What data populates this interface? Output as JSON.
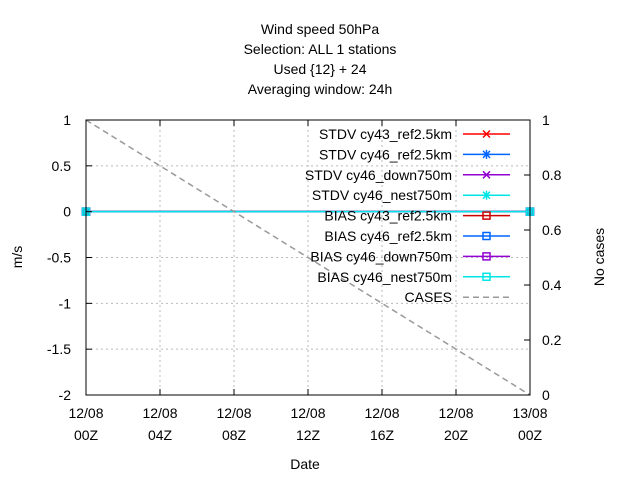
{
  "chart_data": {
    "type": "line",
    "title_lines": [
      "Wind speed 50hPa",
      "Selection: ALL       1 stations",
      "Used {12} + 24",
      "Averaging window: 24h"
    ],
    "xlabel": "Date",
    "ylabel": "m/s",
    "y2label": "No cases",
    "x_ticks": [
      [
        "12/08",
        "00Z"
      ],
      [
        "12/08",
        "04Z"
      ],
      [
        "12/08",
        "08Z"
      ],
      [
        "12/08",
        "12Z"
      ],
      [
        "12/08",
        "16Z"
      ],
      [
        "12/08",
        "20Z"
      ],
      [
        "13/08",
        "00Z"
      ]
    ],
    "x_range_hours": [
      0,
      24
    ],
    "y_ticks": [
      "1",
      "0.5",
      "0",
      "-0.5",
      "-1",
      "-1.5",
      "-2"
    ],
    "ylim": [
      -2,
      1
    ],
    "y2_ticks": [
      "1",
      "0.8",
      "0.6",
      "0.4",
      "0.2",
      "0"
    ],
    "y2lim": [
      0,
      1
    ],
    "grid": true,
    "legend_position": "top-right",
    "series": [
      {
        "name": "STDV cy43_ref2.5km",
        "color": "#ff0000",
        "marker": "x",
        "axis": "y1",
        "x": [
          0,
          24
        ],
        "y": [
          0,
          0
        ]
      },
      {
        "name": "STDV cy46_ref2.5km",
        "color": "#0066ff",
        "marker": "star",
        "axis": "y1",
        "x": [
          0,
          24
        ],
        "y": [
          0,
          0
        ]
      },
      {
        "name": "STDV cy46_down750m",
        "color": "#9400d3",
        "marker": "x",
        "axis": "y1",
        "x": [
          0,
          24
        ],
        "y": [
          0,
          0
        ]
      },
      {
        "name": "STDV cy46_nest750m",
        "color": "#00e5e5",
        "marker": "star",
        "axis": "y1",
        "x": [
          0,
          24
        ],
        "y": [
          0,
          0
        ]
      },
      {
        "name": "BIAS cy43_ref2.5km",
        "color": "#cc0000",
        "marker": "square",
        "axis": "y1",
        "x": [
          0,
          24
        ],
        "y": [
          0,
          0
        ]
      },
      {
        "name": "BIAS cy46_ref2.5km",
        "color": "#0066ff",
        "marker": "square",
        "axis": "y1",
        "x": [
          0,
          24
        ],
        "y": [
          0,
          0
        ]
      },
      {
        "name": "BIAS cy46_down750m",
        "color": "#9400d3",
        "marker": "square",
        "axis": "y1",
        "x": [
          0,
          24
        ],
        "y": [
          0,
          0
        ]
      },
      {
        "name": "BIAS cy46_nest750m",
        "color": "#00e5e5",
        "marker": "square",
        "axis": "y1",
        "x": [
          0,
          24
        ],
        "y": [
          0,
          0
        ]
      },
      {
        "name": "CASES",
        "color": "#999999",
        "marker": "none",
        "dash": true,
        "axis": "y2",
        "x": [
          0,
          24
        ],
        "y": [
          1,
          0
        ]
      }
    ]
  }
}
